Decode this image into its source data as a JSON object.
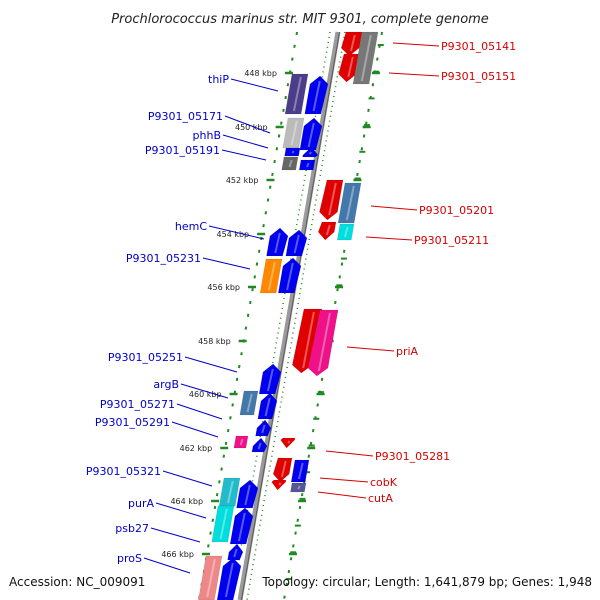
{
  "title": "Prochlorococcus marinus str. MIT 9301, complete genome",
  "footer": {
    "accession": "Accession: NC_009091",
    "topology": "Topology: circular; Length: 1,641,879 bp; Genes: 1,948"
  },
  "colors": {
    "forward_label": "#0000c8",
    "reverse_label": "#d40000",
    "guide_dots": "#228822",
    "backbone": "#808080"
  },
  "ticks": [
    "448 kbp",
    "450 kbp",
    "452 kbp",
    "454 kbp",
    "456 kbp",
    "458 kbp",
    "460 kbp",
    "462 kbp",
    "464 kbp",
    "466 kbp"
  ],
  "left_labels": [
    "thiP",
    "P9301_05171",
    "phhB",
    "P9301_05191",
    "hemC",
    "P9301_05231",
    "P9301_05251",
    "argB",
    "P9301_05271",
    "P9301_05291",
    "P9301_05321",
    "purA",
    "psb27",
    "proS"
  ],
  "right_labels": [
    "P9301_05141",
    "P9301_05151",
    "P9301_05201",
    "P9301_05211",
    "priA",
    "P9301_05281",
    "cobK",
    "cutA"
  ]
}
